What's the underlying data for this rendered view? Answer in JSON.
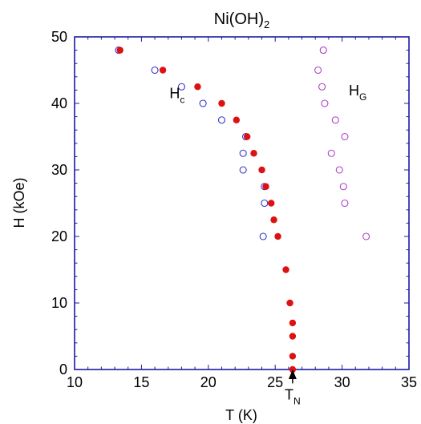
{
  "chart_data": {
    "type": "scatter",
    "title": "Ni(OH)",
    "title_subscript": "2",
    "xlabel": "T (K)",
    "ylabel": "H (kOe)",
    "xlim": [
      10,
      35
    ],
    "ylim": [
      0,
      50
    ],
    "x_ticks": [
      "10",
      "15",
      "20",
      "25",
      "30",
      "35"
    ],
    "y_ticks": [
      "0",
      "10",
      "20",
      "30",
      "40",
      "50"
    ],
    "grid": false,
    "colors": {
      "axes": "#1a1aa6",
      "hc_up": "#3333cc",
      "hc_down": "#dd1111",
      "hg": "#b040c8"
    },
    "series": [
      {
        "name": "Hc (open)",
        "marker": "open-circle",
        "color": "#3333cc",
        "points": [
          [
            13.3,
            48
          ],
          [
            16,
            45
          ],
          [
            18,
            42.5
          ],
          [
            19.6,
            40
          ],
          [
            21,
            37.5
          ],
          [
            22.8,
            35
          ],
          [
            22.6,
            32.5
          ],
          [
            22.6,
            30
          ],
          [
            24.2,
            27.5
          ],
          [
            24.2,
            25
          ],
          [
            24.1,
            20
          ]
        ]
      },
      {
        "name": "Hc (filled)",
        "marker": "filled-circle",
        "color": "#dd1111",
        "points": [
          [
            13.4,
            48
          ],
          [
            16.6,
            45
          ],
          [
            19.2,
            42.5
          ],
          [
            21,
            40
          ],
          [
            22.1,
            37.5
          ],
          [
            22.9,
            35
          ],
          [
            23.4,
            32.5
          ],
          [
            24,
            30
          ],
          [
            24.3,
            27.5
          ],
          [
            24.7,
            25
          ],
          [
            24.9,
            22.5
          ],
          [
            25.2,
            20
          ],
          [
            25.8,
            15
          ],
          [
            26.1,
            10
          ],
          [
            26.3,
            7
          ],
          [
            26.3,
            5
          ],
          [
            26.3,
            2
          ],
          [
            26.3,
            0
          ]
        ]
      },
      {
        "name": "HG",
        "marker": "open-circle",
        "color": "#b040c8",
        "points": [
          [
            28.6,
            48
          ],
          [
            28.2,
            45
          ],
          [
            28.5,
            42.5
          ],
          [
            28.7,
            40
          ],
          [
            29.5,
            37.5
          ],
          [
            30.2,
            35
          ],
          [
            29.2,
            32.5
          ],
          [
            29.8,
            30
          ],
          [
            30.1,
            27.5
          ],
          [
            30.2,
            25
          ],
          [
            31.8,
            20
          ]
        ]
      }
    ],
    "annotations": [
      {
        "id": "hc",
        "text": "H",
        "subscript": "c",
        "x": 17.1,
        "y": 40.8
      },
      {
        "id": "hg",
        "text": "H",
        "subscript": "G",
        "x": 30.5,
        "y": 41.2
      },
      {
        "id": "tn",
        "text": "T",
        "subscript": "N",
        "x": 26.3,
        "y": -4.5,
        "arrow_to": [
          26.3,
          0
        ]
      }
    ]
  }
}
